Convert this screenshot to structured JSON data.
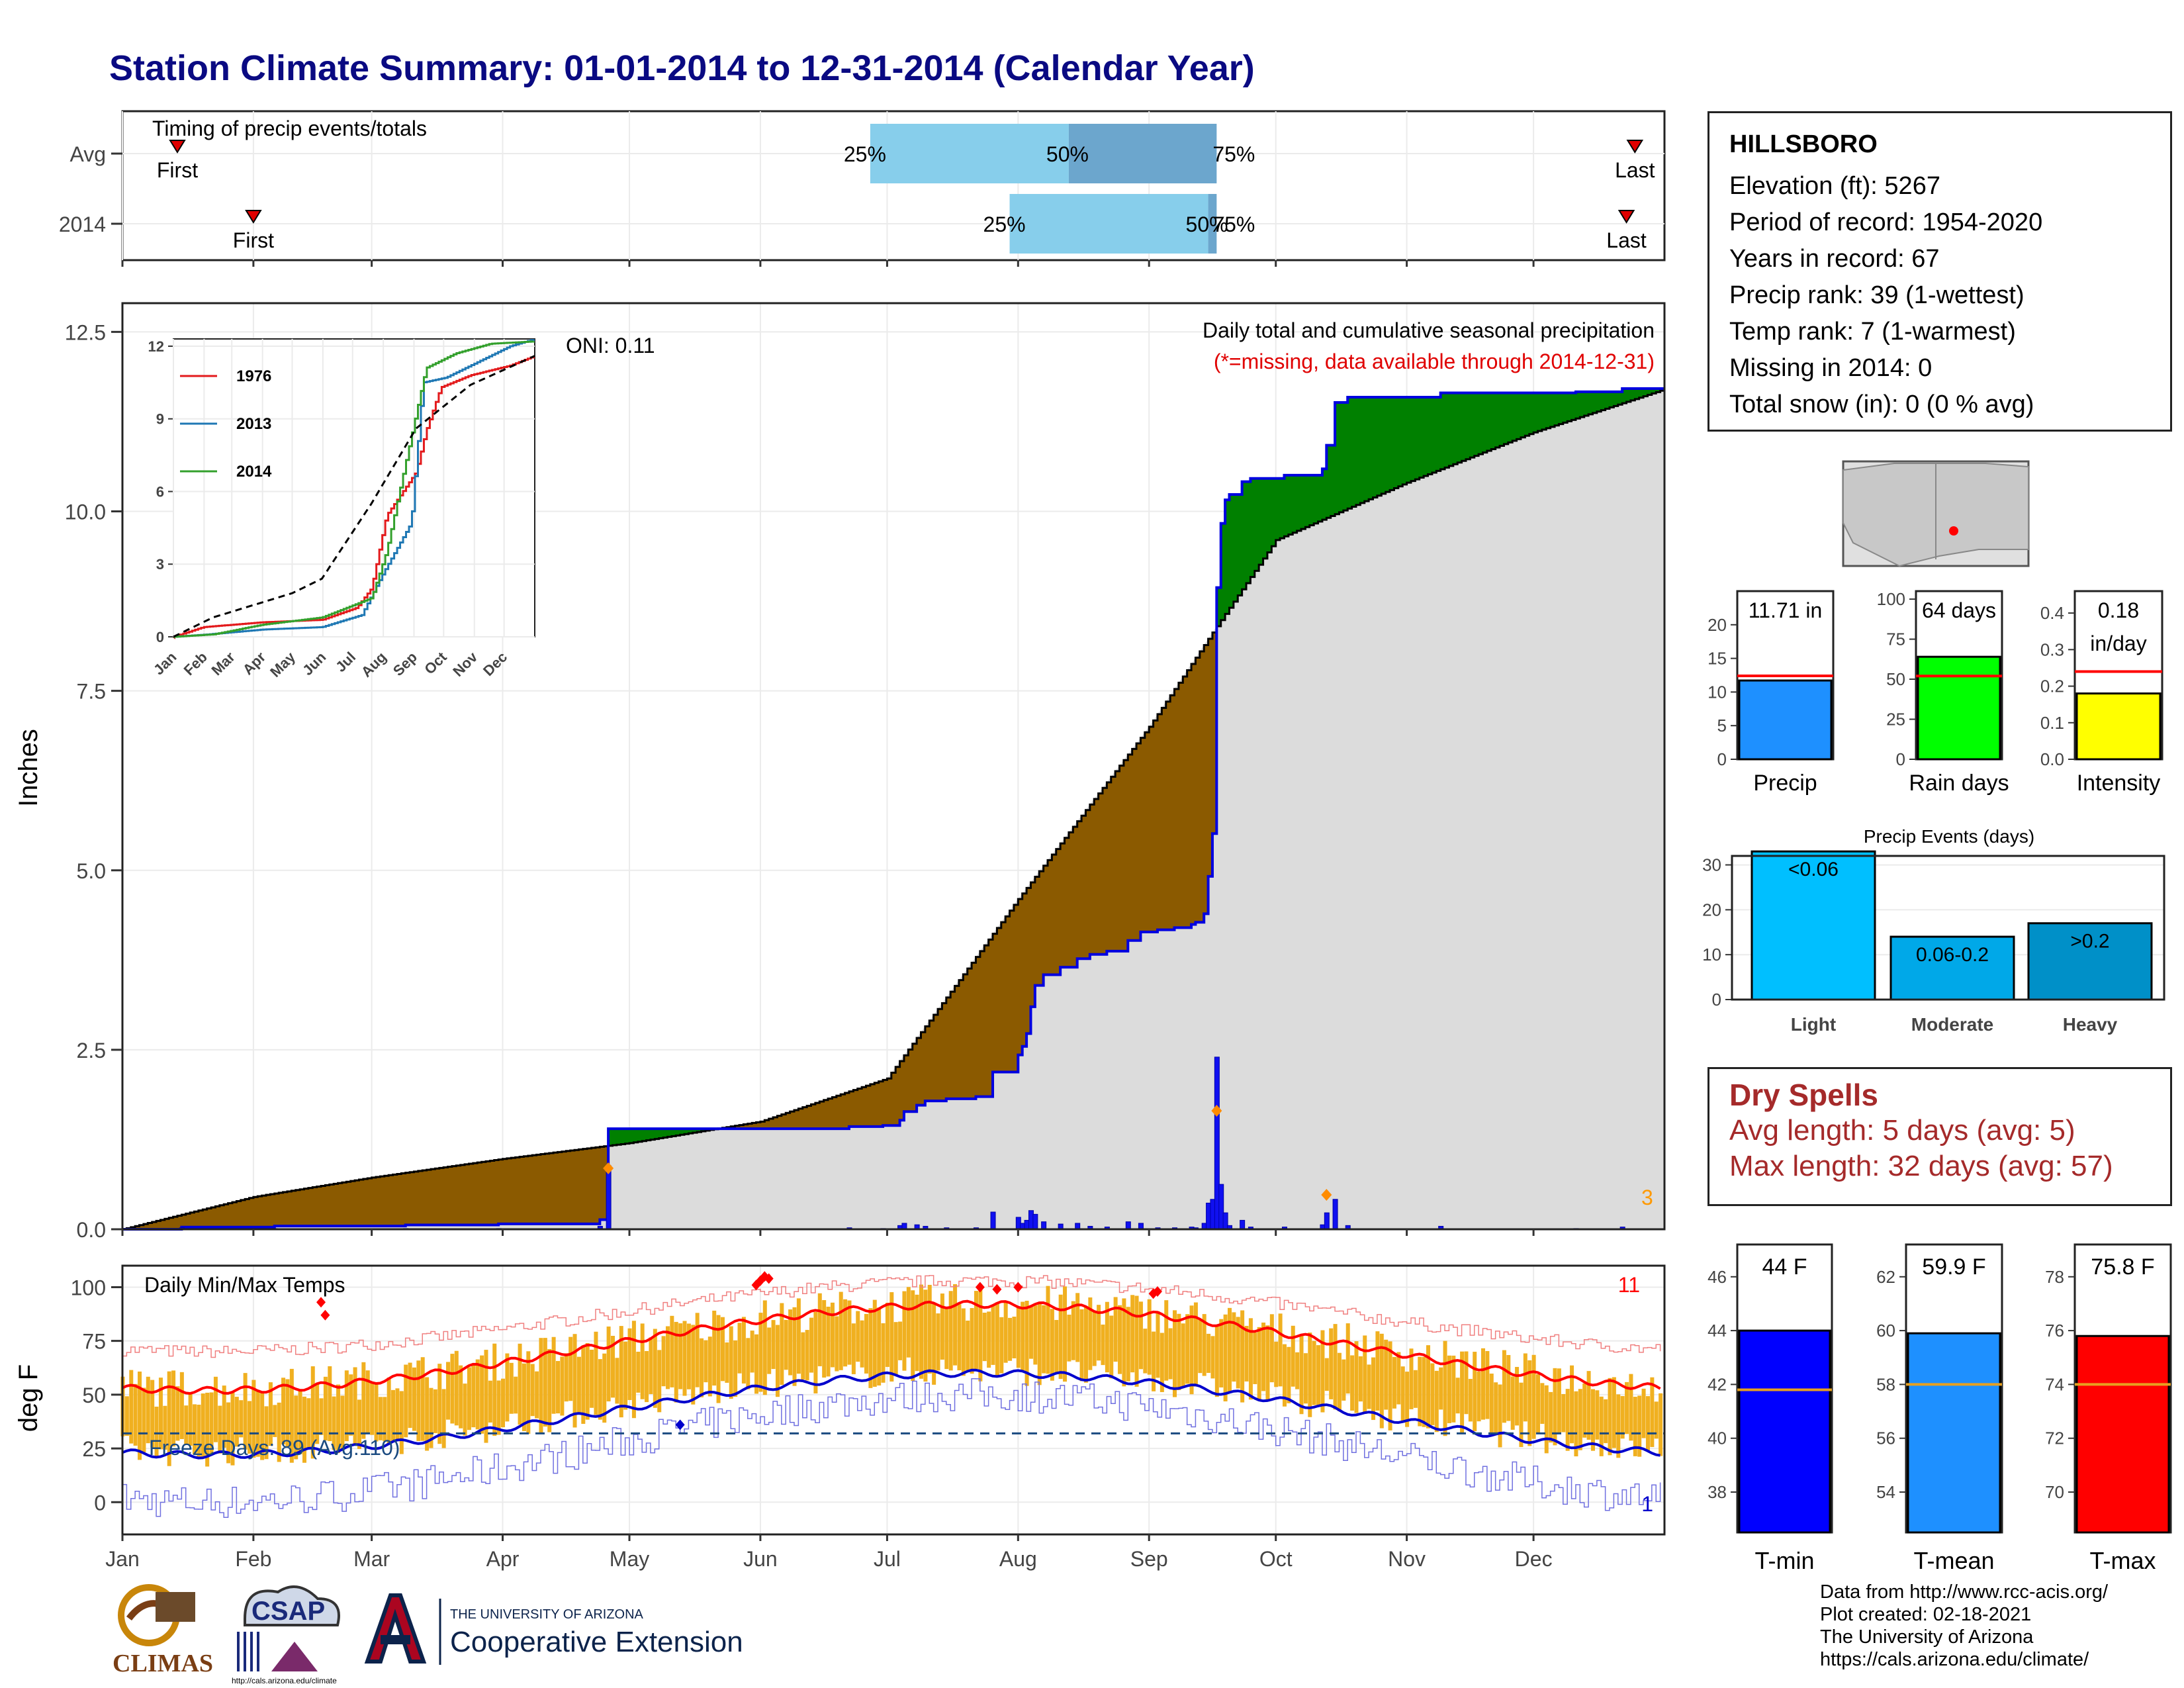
{
  "title": "Station Climate Summary: 01-01-2014 to 12-31-2014 (Calendar Year)",
  "colors": {
    "title": "#0a0a82",
    "avg_cum": "#dcdcdc",
    "below_avg": "#8b5a00",
    "above_avg": "#008000",
    "year_line": "#0000e0",
    "daily_bar": "#1010f0",
    "temp_bar": "#f0b020",
    "tmax_avg": "#ff0000",
    "tmin_avg": "#0000cc",
    "freeze_line": "#1a4a80",
    "record_marker": "#ff8c00"
  },
  "months": [
    "Jan",
    "Feb",
    "Mar",
    "Apr",
    "May",
    "Jun",
    "Jul",
    "Aug",
    "Sep",
    "Oct",
    "Nov",
    "Dec"
  ],
  "timing": {
    "label": "Timing of precip events/totals",
    "rows": [
      {
        "name": "Avg",
        "first_label": "First",
        "last_label": "Last",
        "first_doy": 13,
        "last_doy": 358,
        "p25_label": "25%",
        "p50_label": "50%",
        "p75_label": "75%",
        "p25": 177,
        "p50": 224,
        "p75": 259
      },
      {
        "name": "2014",
        "first_label": "First",
        "last_label": "Last",
        "first_doy": 31,
        "last_doy": 356,
        "p25_label": "25%",
        "p50_label": "50%",
        "p75_label": "75%",
        "p25": 210,
        "p50": 257,
        "p75": 259
      }
    ]
  },
  "precip": {
    "ylabel": "Inches",
    "ticks": [
      "0.0",
      "2.5",
      "5.0",
      "7.5",
      "10.0",
      "12.5"
    ],
    "title": "Daily total and cumulative seasonal precipitation",
    "subtitle": "(*=missing, data available through 2014-12-31)",
    "oni": "ONI: 0.11",
    "count_label": "3"
  },
  "inset": {
    "ticks": [
      "0",
      "3",
      "6",
      "9",
      "12"
    ],
    "months": [
      "Jan",
      "Feb",
      "Mar",
      "Apr",
      "May",
      "Jun",
      "Jul",
      "Aug",
      "Sep",
      "Oct",
      "Nov",
      "Dec"
    ],
    "legend": [
      {
        "name": "1976",
        "color": "#e31a1c"
      },
      {
        "name": "2013",
        "color": "#1f78b4"
      },
      {
        "name": "2014",
        "color": "#33a02c"
      }
    ]
  },
  "temps": {
    "ylabel": "deg F",
    "ticks": [
      "0",
      "25",
      "50",
      "75",
      "100"
    ],
    "title": "Daily Min/Max Temps",
    "freeze_label": "Freeze Days: 89 (Avg:110)",
    "max_records": "11",
    "min_records": "1"
  },
  "station": {
    "name": "HILLSBORO",
    "lines": [
      "Elevation (ft): 5267",
      "Period of record: 1954-2020",
      "Years in record: 67",
      "Precip rank: 39 (1-wettest)",
      "Temp rank: 7 (1-warmest)",
      "Missing in 2014: 0",
      "Total snow (in): 0 (0 % avg)"
    ]
  },
  "summary_bars": [
    {
      "label": "Precip",
      "value_label": "11.71 in",
      "value": 11.71,
      "avg": 12.4,
      "ymax": 25,
      "ticks": [
        "0",
        "5",
        "10",
        "15",
        "20"
      ],
      "color": "#1e90ff"
    },
    {
      "label": "Rain days",
      "value_label": "64 days",
      "value": 64,
      "avg": 52,
      "ymax": 105,
      "ticks": [
        "0",
        "25",
        "50",
        "75",
        "100"
      ],
      "color": "#00ff00"
    },
    {
      "label": "Intensity",
      "value_label": "0.18",
      "value_label2": "in/day",
      "value": 0.18,
      "avg": 0.24,
      "ymax": 0.46,
      "ticks": [
        "0.0",
        "0.1",
        "0.2",
        "0.3",
        "0.4"
      ],
      "color": "#ffff00"
    }
  ],
  "precip_events": {
    "title": "Precip Events (days)",
    "ticks": [
      "0",
      "10",
      "20",
      "30"
    ],
    "bars": [
      {
        "name": "Light",
        "label": "<0.06",
        "value": 33,
        "color": "#00bfff"
      },
      {
        "name": "Moderate",
        "label": "0.06-0.2",
        "value": 14,
        "color": "#00a8e8"
      },
      {
        "name": "Heavy",
        "label": ">0.2",
        "value": 17,
        "color": "#0090c8"
      }
    ]
  },
  "dry_spells": {
    "title": "Dry Spells",
    "avg": "Avg length: 5 days (avg: 5)",
    "max": "Max length: 32 days (avg: 57)"
  },
  "temp_bars": [
    {
      "label": "T-min",
      "value_label": "44 F",
      "value": 44,
      "avg": 41.8,
      "ymin": 36.5,
      "ymax": 47.2,
      "ticks": [
        "38",
        "40",
        "42",
        "44",
        "46"
      ],
      "color": "#0000ff"
    },
    {
      "label": "T-mean",
      "value_label": "59.9 F",
      "value": 59.9,
      "avg": 58,
      "ymin": 52.5,
      "ymax": 63.2,
      "ticks": [
        "54",
        "56",
        "58",
        "60",
        "62"
      ],
      "color": "#1e90ff"
    },
    {
      "label": "T-max",
      "value_label": "75.8 F",
      "value": 75.8,
      "avg": 74,
      "ymin": 68.5,
      "ymax": 79.2,
      "ticks": [
        "70",
        "72",
        "74",
        "76",
        "78"
      ],
      "color": "#ff0000"
    }
  ],
  "logos": {
    "climas": "CLIMAS",
    "csap": "CSAP",
    "csap_url": "http://cals.arizona.edu/climate",
    "ua_line1": "THE UNIVERSITY OF ARIZONA",
    "ua_line2": "Cooperative Extension"
  },
  "credits": [
    "Data from http://www.rcc-acis.org/",
    "Plot created: 02-18-2021",
    "The University of Arizona",
    "https://cals.arizona.edu/climate/"
  ]
}
